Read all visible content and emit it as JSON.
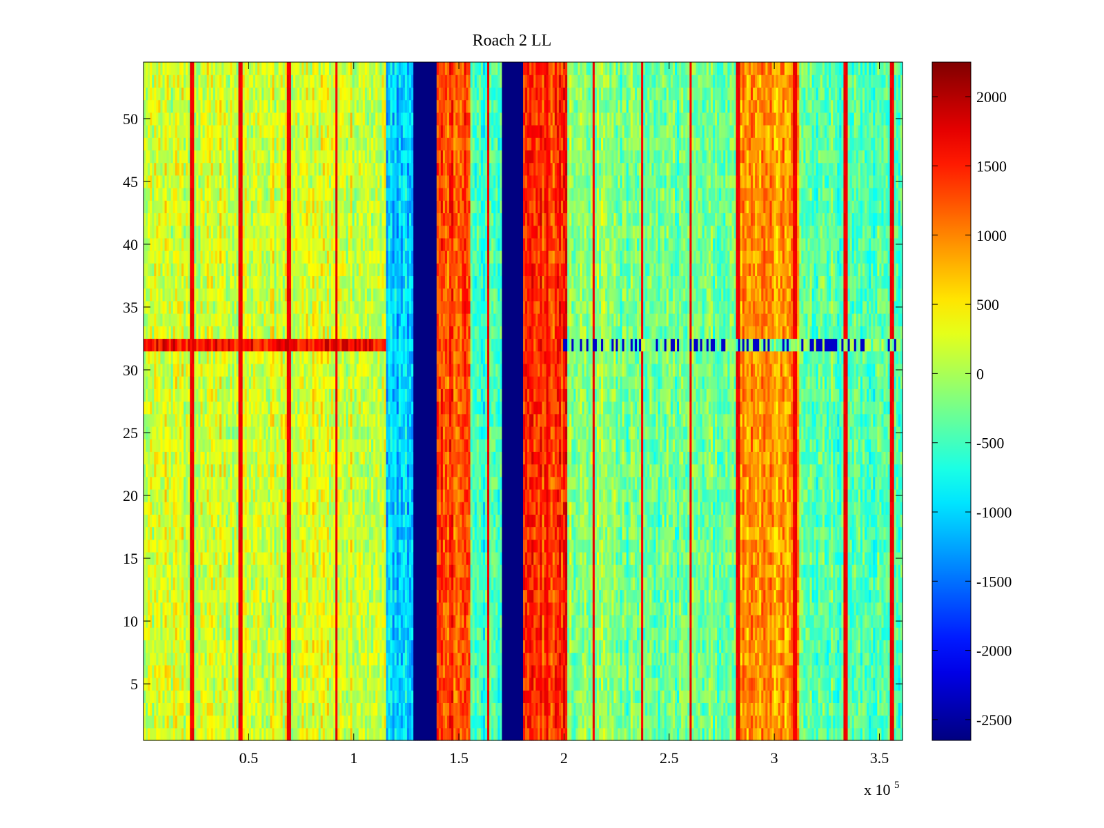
{
  "chart_data": {
    "type": "heatmap",
    "title": "Roach 2 LL",
    "xlabel": "",
    "ylabel": "",
    "x_exponent_label": {
      "base": "x 10",
      "exponent": "5"
    },
    "x_range_scaled": [
      0.0,
      3.61
    ],
    "y_range": [
      0.5,
      54.5
    ],
    "x_ticks": [
      0.5,
      1,
      1.5,
      2,
      2.5,
      3,
      3.5
    ],
    "x_tick_labels": [
      "0.5",
      "1",
      "1.5",
      "2",
      "2.5",
      "3",
      "3.5"
    ],
    "y_ticks": [
      5,
      10,
      15,
      20,
      25,
      30,
      35,
      40,
      45,
      50
    ],
    "y_tick_labels": [
      "5",
      "10",
      "15",
      "20",
      "25",
      "30",
      "35",
      "40",
      "45",
      "50"
    ],
    "rows": 54,
    "columns": 360,
    "colormap": "jet",
    "color_range": [
      -2650,
      2250
    ],
    "colorbar_ticks": [
      2000,
      1500,
      1000,
      500,
      0,
      -500,
      -1000,
      -1500,
      -2000,
      -2500
    ],
    "colorbar_tick_labels": [
      "2000",
      "1500",
      "1000",
      "500",
      "0",
      "-500",
      "-1000",
      "-1500",
      "-2000",
      "-2500"
    ],
    "column_band_profile": [
      {
        "x_start": 0.0,
        "x_end": 1.15,
        "value": 200
      },
      {
        "x_start": 1.15,
        "x_end": 1.28,
        "value": -1000
      },
      {
        "x_start": 1.28,
        "x_end": 1.39,
        "value": -2650
      },
      {
        "x_start": 1.39,
        "x_end": 1.55,
        "value": 1300
      },
      {
        "x_start": 1.55,
        "x_end": 1.7,
        "value": -600
      },
      {
        "x_start": 1.7,
        "x_end": 1.81,
        "value": -2650
      },
      {
        "x_start": 1.81,
        "x_end": 2.02,
        "value": 1400
      },
      {
        "x_start": 2.02,
        "x_end": 2.25,
        "value": -100
      },
      {
        "x_start": 2.25,
        "x_end": 2.82,
        "value": -300
      },
      {
        "x_start": 2.82,
        "x_end": 3.12,
        "value": 900
      },
      {
        "x_start": 3.12,
        "x_end": 3.61,
        "value": -400
      }
    ],
    "spike_columns": [
      0.23,
      0.46,
      0.69,
      0.92,
      1.64,
      1.92,
      2.14,
      2.37,
      2.6,
      2.83,
      3.1,
      3.34,
      3.56
    ],
    "spike_value": 1700,
    "anomaly_row": 32,
    "noise_amplitude": 450,
    "seed": 7
  }
}
